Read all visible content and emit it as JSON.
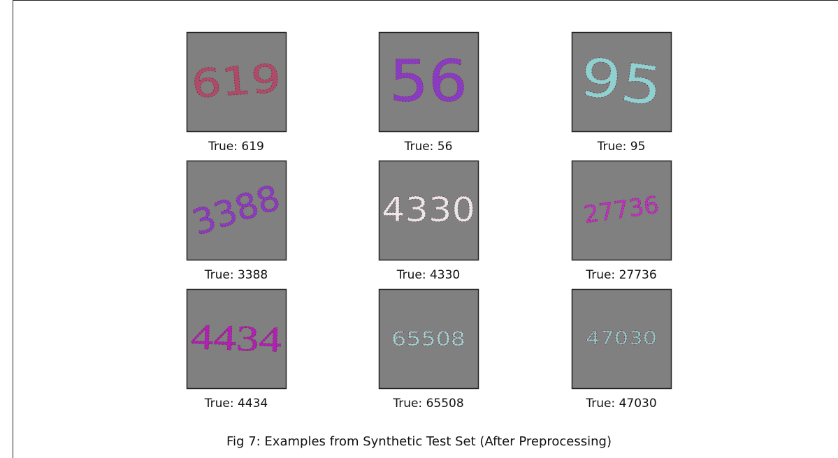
{
  "figure": {
    "panels": [
      {
        "digits": "619",
        "label": "True: 619",
        "color": "#b04a6a"
      },
      {
        "digits": "56",
        "label": "True: 56",
        "color": "#8a3bc4"
      },
      {
        "digits": "95",
        "label": "True: 95",
        "color": "#8fd0d0"
      },
      {
        "digits": "3388",
        "label": "True: 3388",
        "color": "#8a3bc4"
      },
      {
        "digits": "4330",
        "label": "True: 4330",
        "color": "#e8e8e8"
      },
      {
        "digits": "27736",
        "label": "True: 27736",
        "color": "#c030c8"
      },
      {
        "digits": "4434",
        "label": "True: 4434",
        "color": "#b020b8"
      },
      {
        "digits": "65508",
        "label": "True: 65508",
        "color": "#9fd4d4"
      },
      {
        "digits": "47030",
        "label": "True: 47030",
        "color": "#8fc8c8"
      }
    ],
    "caption": "Fig 7: Examples from Synthetic Test Set (After Preprocessing)"
  }
}
